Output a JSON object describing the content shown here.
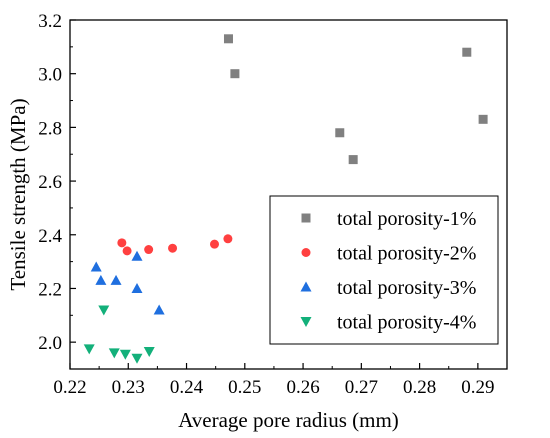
{
  "chart_data": {
    "type": "scatter",
    "xlabel": "Average pore radius (mm)",
    "ylabel": "Tensile strength (MPa)",
    "xlim": [
      0.22,
      0.295
    ],
    "ylim": [
      1.9,
      3.2
    ],
    "xticks": [
      "0.22",
      "0.23",
      "0.24",
      "0.25",
      "0.26",
      "0.27",
      "0.28",
      "0.29"
    ],
    "yticks": [
      "2.0",
      "2.2",
      "2.4",
      "2.6",
      "2.8",
      "3.0",
      "3.2"
    ],
    "grid": false,
    "legend_position": "bottom-right",
    "series": [
      {
        "name": "total porosity-1%",
        "marker": "square",
        "color": "#808080",
        "points": [
          [
            0.2472,
            3.13
          ],
          [
            0.2483,
            3.0
          ],
          [
            0.2663,
            2.78
          ],
          [
            0.2686,
            2.68
          ],
          [
            0.2881,
            3.08
          ],
          [
            0.2909,
            2.83
          ]
        ]
      },
      {
        "name": "total porosity-2%",
        "marker": "circle",
        "color": "#ff4040",
        "points": [
          [
            0.2289,
            2.37
          ],
          [
            0.2298,
            2.34
          ],
          [
            0.2335,
            2.345
          ],
          [
            0.2376,
            2.35
          ],
          [
            0.2448,
            2.365
          ],
          [
            0.2471,
            2.385
          ]
        ]
      },
      {
        "name": "total porosity-3%",
        "marker": "triangle-up",
        "color": "#1f6fdf",
        "points": [
          [
            0.2245,
            2.28
          ],
          [
            0.2253,
            2.23
          ],
          [
            0.2279,
            2.23
          ],
          [
            0.2315,
            2.32
          ],
          [
            0.2315,
            2.2
          ],
          [
            0.2353,
            2.12
          ]
        ]
      },
      {
        "name": "total porosity-4%",
        "marker": "triangle-down",
        "color": "#13b07a",
        "points": [
          [
            0.2233,
            1.975
          ],
          [
            0.2258,
            2.12
          ],
          [
            0.2276,
            1.96
          ],
          [
            0.2295,
            1.955
          ],
          [
            0.2315,
            1.94
          ],
          [
            0.2336,
            1.965
          ]
        ]
      }
    ]
  }
}
